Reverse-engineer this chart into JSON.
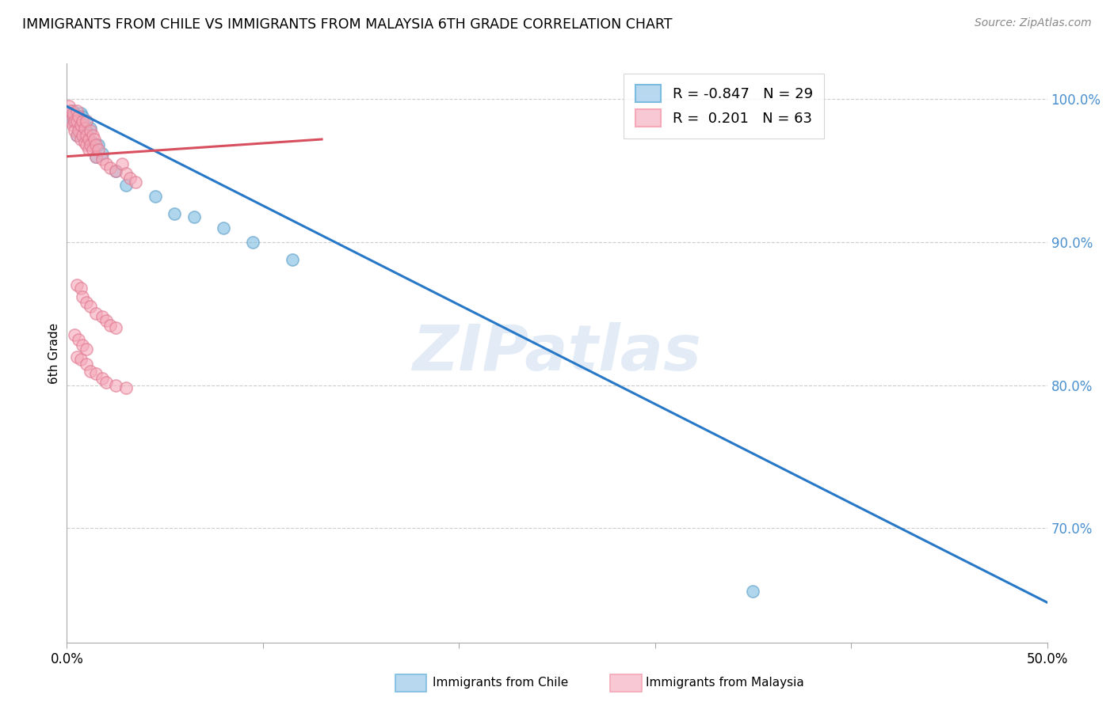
{
  "title": "IMMIGRANTS FROM CHILE VS IMMIGRANTS FROM MALAYSIA 6TH GRADE CORRELATION CHART",
  "source": "Source: ZipAtlas.com",
  "ylabel": "6th Grade",
  "xlim": [
    0.0,
    0.5
  ],
  "ylim": [
    0.62,
    1.025
  ],
  "ytick_labels_right": [
    "100.0%",
    "90.0%",
    "80.0%",
    "70.0%"
  ],
  "ytick_positions_right": [
    1.0,
    0.9,
    0.8,
    0.7
  ],
  "chile_color": "#7bbce0",
  "chile_edge": "#5a9cc8",
  "malaysia_color": "#f5a8b8",
  "malaysia_edge": "#e07890",
  "line_chile_color": "#2878c8",
  "line_malaysia_color": "#d85060",
  "legend_chile_label": "R = -0.847   N = 29",
  "legend_malaysia_label": "R =  0.201   N = 63",
  "watermark": "ZIPatlas",
  "chile_line_x0": 0.0,
  "chile_line_y0": 0.995,
  "chile_line_x1": 0.5,
  "chile_line_y1": 0.648,
  "malaysia_line_x0": 0.0,
  "malaysia_line_y0": 0.96,
  "malaysia_line_x1": 0.13,
  "malaysia_line_y1": 0.972,
  "chile_points_x": [
    0.001,
    0.002,
    0.003,
    0.003,
    0.004,
    0.005,
    0.005,
    0.006,
    0.007,
    0.007,
    0.008,
    0.009,
    0.01,
    0.01,
    0.011,
    0.012,
    0.013,
    0.015,
    0.016,
    0.018,
    0.025,
    0.03,
    0.045,
    0.055,
    0.065,
    0.08,
    0.095,
    0.115,
    0.35
  ],
  "chile_points_y": [
    0.99,
    0.988,
    0.985,
    0.992,
    0.987,
    0.985,
    0.975,
    0.98,
    0.978,
    0.99,
    0.988,
    0.975,
    0.985,
    0.978,
    0.972,
    0.98,
    0.97,
    0.96,
    0.968,
    0.962,
    0.95,
    0.94,
    0.932,
    0.92,
    0.918,
    0.91,
    0.9,
    0.888,
    0.656
  ],
  "malaysia_points_x": [
    0.001,
    0.002,
    0.002,
    0.003,
    0.003,
    0.003,
    0.004,
    0.004,
    0.005,
    0.005,
    0.005,
    0.006,
    0.006,
    0.007,
    0.007,
    0.008,
    0.008,
    0.009,
    0.009,
    0.01,
    0.01,
    0.01,
    0.011,
    0.011,
    0.012,
    0.012,
    0.013,
    0.013,
    0.014,
    0.015,
    0.015,
    0.016,
    0.018,
    0.02,
    0.022,
    0.025,
    0.028,
    0.03,
    0.032,
    0.035,
    0.005,
    0.007,
    0.008,
    0.01,
    0.012,
    0.015,
    0.018,
    0.02,
    0.022,
    0.025,
    0.004,
    0.006,
    0.008,
    0.01,
    0.005,
    0.007,
    0.01,
    0.012,
    0.015,
    0.018,
    0.02,
    0.025,
    0.03
  ],
  "malaysia_points_y": [
    0.995,
    0.992,
    0.985,
    0.988,
    0.982,
    0.99,
    0.985,
    0.978,
    0.992,
    0.985,
    0.975,
    0.988,
    0.978,
    0.982,
    0.972,
    0.985,
    0.975,
    0.98,
    0.97,
    0.975,
    0.968,
    0.985,
    0.972,
    0.965,
    0.978,
    0.968,
    0.975,
    0.965,
    0.972,
    0.968,
    0.96,
    0.965,
    0.958,
    0.955,
    0.952,
    0.95,
    0.955,
    0.948,
    0.945,
    0.942,
    0.87,
    0.868,
    0.862,
    0.858,
    0.855,
    0.85,
    0.848,
    0.845,
    0.842,
    0.84,
    0.835,
    0.832,
    0.828,
    0.825,
    0.82,
    0.818,
    0.815,
    0.81,
    0.808,
    0.805,
    0.802,
    0.8,
    0.798
  ]
}
